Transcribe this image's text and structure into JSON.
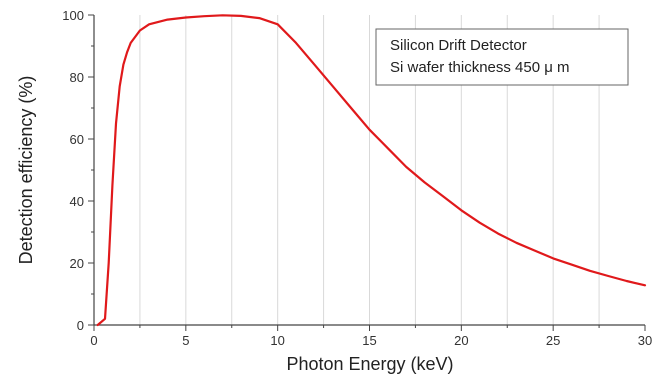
{
  "chart_data": {
    "type": "line",
    "xlabel": "Photon Energy (keV)",
    "ylabel": "Detection efficiency (%)",
    "xlim": [
      0,
      30
    ],
    "ylim": [
      0,
      100
    ],
    "x_ticks": [
      "0",
      "5",
      "10",
      "15",
      "20",
      "25",
      "30"
    ],
    "y_ticks": [
      "0",
      "20",
      "40",
      "60",
      "80",
      "100"
    ],
    "grid": "vertical",
    "legend": {
      "placement": "top-right",
      "lines": [
        "Silicon Drift Detector",
        "Si wafer thickness 450 μ m"
      ]
    },
    "series": [
      {
        "color": "#e0191b",
        "points": [
          [
            0.2,
            0
          ],
          [
            0.6,
            2
          ],
          [
            0.8,
            20
          ],
          [
            1.0,
            45
          ],
          [
            1.2,
            65
          ],
          [
            1.4,
            77
          ],
          [
            1.6,
            84
          ],
          [
            1.8,
            88
          ],
          [
            2.0,
            91
          ],
          [
            2.5,
            95
          ],
          [
            3.0,
            97
          ],
          [
            4.0,
            98.5
          ],
          [
            5.0,
            99.2
          ],
          [
            6.0,
            99.6
          ],
          [
            7.0,
            99.9
          ],
          [
            8.0,
            99.7
          ],
          [
            9.0,
            99
          ],
          [
            10.0,
            97
          ],
          [
            11.0,
            91
          ],
          [
            12.0,
            84
          ],
          [
            13.0,
            77
          ],
          [
            14.0,
            70
          ],
          [
            15.0,
            63
          ],
          [
            16.0,
            57
          ],
          [
            17.0,
            51
          ],
          [
            18.0,
            46
          ],
          [
            19.0,
            41.5
          ],
          [
            20.0,
            37
          ],
          [
            21.0,
            33
          ],
          [
            22.0,
            29.5
          ],
          [
            23.0,
            26.5
          ],
          [
            24.0,
            24
          ],
          [
            25.0,
            21.5
          ],
          [
            26.0,
            19.5
          ],
          [
            27.0,
            17.5
          ],
          [
            28.0,
            15.8
          ],
          [
            29.0,
            14.2
          ],
          [
            30.0,
            12.8
          ]
        ]
      }
    ]
  }
}
